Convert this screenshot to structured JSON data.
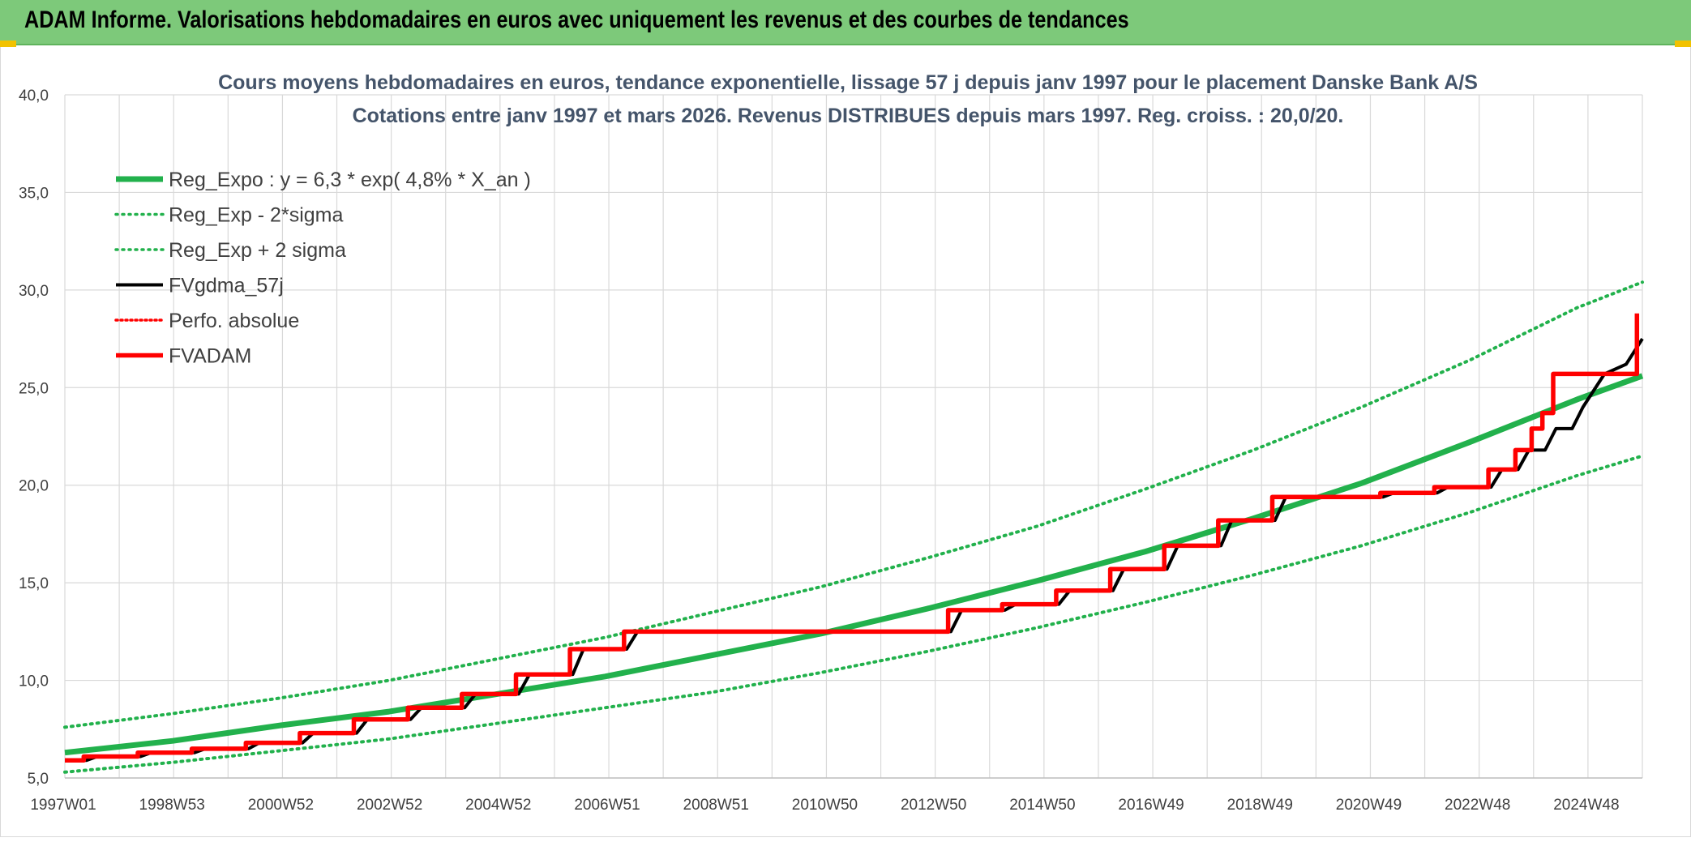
{
  "header": {
    "title": "ADAM Informe. Valorisations hebdomadaires en euros avec uniquement les revenus et des courbes de tendances"
  },
  "colors": {
    "header_bg": "#7dc97a",
    "regression": "#22b14c",
    "gdma": "#000000",
    "adam": "#ff0000",
    "grid": "#d9d9d9"
  },
  "chart_data": {
    "type": "line",
    "title": "Cours moyens hebdomadaires en euros, tendance exponentielle, lissage 57 j depuis janv 1997 pour le placement Danske Bank A/S",
    "subtitle": "Cotations entre janv 1997 et mars 2026. Revenus DISTRIBUES depuis mars 1997. Reg. croiss. : 20,0/20.",
    "xlabel": "",
    "ylabel": "",
    "ylim": [
      5.0,
      40.0
    ],
    "y_ticks": [
      "5,0",
      "10,0",
      "15,0",
      "20,0",
      "25,0",
      "30,0",
      "35,0",
      "40,0"
    ],
    "x_range_years": [
      1997.0,
      2026.2
    ],
    "x_tick_labels": [
      "1997W01",
      "1998W53",
      "2000W52",
      "2002W52",
      "2004W52",
      "2006W51",
      "2008W51",
      "2010W50",
      "2012W50",
      "2014W50",
      "2016W49",
      "2018W49",
      "2020W49",
      "2022W48",
      "2024W48"
    ],
    "grid": true,
    "legend_position": "top-left",
    "legend": [
      "Reg_Expo : y = 6,3 * exp( 4,8% *  X_an )",
      "Reg_Exp - 2*sigma",
      "Reg_Exp + 2 sigma",
      "FVgdma_57j",
      "Perfo. absolue",
      "FVADAM"
    ],
    "series": [
      {
        "name": "Reg_Expo : y = 6,3 * exp( 4,8% *  X_an )",
        "style": "solid",
        "x": [
          1997,
          1999,
          2001,
          2003,
          2005,
          2007,
          2009,
          2011,
          2013,
          2015,
          2017,
          2019,
          2021,
          2023,
          2025,
          2026.2
        ],
        "y": [
          6.3,
          6.9,
          7.7,
          8.4,
          9.3,
          10.2,
          11.3,
          12.4,
          13.7,
          15.1,
          16.6,
          18.3,
          20.1,
          22.2,
          24.4,
          25.6
        ]
      },
      {
        "name": "Reg_Exp - 2*sigma",
        "style": "dotted",
        "x": [
          1997,
          1999,
          2001,
          2003,
          2005,
          2007,
          2009,
          2011,
          2013,
          2015,
          2017,
          2019,
          2021,
          2023,
          2025,
          2026.2
        ],
        "y": [
          5.3,
          5.8,
          6.4,
          7.0,
          7.8,
          8.6,
          9.4,
          10.4,
          11.5,
          12.7,
          14.0,
          15.4,
          16.9,
          18.6,
          20.5,
          21.5
        ]
      },
      {
        "name": "Reg_Exp + 2 sigma",
        "style": "dotted",
        "x": [
          1997,
          1999,
          2001,
          2003,
          2005,
          2007,
          2009,
          2011,
          2013,
          2015,
          2017,
          2019,
          2021,
          2023,
          2025,
          2026.2
        ],
        "y": [
          7.6,
          8.3,
          9.1,
          10.0,
          11.1,
          12.2,
          13.5,
          14.8,
          16.3,
          17.9,
          19.8,
          21.8,
          24.0,
          26.4,
          29.1,
          30.4
        ]
      },
      {
        "name": "FVgdma_57j",
        "style": "solid",
        "x": [
          1997.0,
          1997.4,
          1997.6,
          1998.4,
          1998.6,
          1999.4,
          1999.6,
          2000.4,
          2000.6,
          2001.4,
          2001.6,
          2002.4,
          2002.6,
          2003.4,
          2003.6,
          2004.4,
          2004.6,
          2005.4,
          2005.6,
          2006.4,
          2006.6,
          2007.4,
          2007.6,
          2013.4,
          2013.6,
          2014.4,
          2014.6,
          2015.4,
          2015.6,
          2016.4,
          2016.6,
          2017.4,
          2017.6,
          2018.4,
          2018.6,
          2019.4,
          2019.6,
          2021.4,
          2021.6,
          2022.4,
          2022.6,
          2023.4,
          2023.6,
          2023.9,
          2024.1,
          2024.4,
          2024.6,
          2024.9,
          2025.1,
          2025.5,
          2025.9,
          2026.2
        ],
        "y": [
          5.9,
          5.9,
          6.1,
          6.1,
          6.3,
          6.3,
          6.5,
          6.5,
          6.8,
          6.8,
          7.3,
          7.3,
          8.0,
          8.0,
          8.6,
          8.6,
          9.3,
          9.3,
          10.3,
          10.3,
          11.6,
          11.6,
          12.5,
          12.5,
          13.6,
          13.6,
          13.9,
          13.9,
          14.6,
          14.6,
          15.7,
          15.7,
          16.9,
          16.9,
          18.2,
          18.2,
          19.4,
          19.4,
          19.6,
          19.6,
          19.9,
          19.9,
          20.8,
          20.8,
          21.8,
          21.8,
          22.9,
          22.9,
          24.0,
          25.7,
          26.2,
          27.5
        ]
      },
      {
        "name": "Perfo. absolue",
        "style": "dotted",
        "x": [],
        "y": []
      },
      {
        "name": "FVADAM",
        "style": "solid",
        "x": [
          1997.0,
          1997.35,
          1997.35,
          1998.35,
          1998.35,
          1999.35,
          1999.35,
          2000.35,
          2000.35,
          2001.35,
          2001.35,
          2002.35,
          2002.35,
          2003.35,
          2003.35,
          2004.35,
          2004.35,
          2005.35,
          2005.35,
          2006.35,
          2006.35,
          2007.35,
          2007.35,
          2013.35,
          2013.35,
          2014.35,
          2014.35,
          2015.35,
          2015.35,
          2016.35,
          2016.35,
          2017.35,
          2017.35,
          2018.35,
          2018.35,
          2019.35,
          2019.35,
          2021.35,
          2021.35,
          2022.35,
          2022.35,
          2023.35,
          2023.35,
          2023.85,
          2023.85,
          2024.15,
          2024.15,
          2024.35,
          2024.35,
          2024.55,
          2024.55,
          2024.9,
          2024.9,
          2026.1,
          2026.1
        ],
        "y": [
          5.9,
          5.9,
          6.1,
          6.1,
          6.3,
          6.3,
          6.5,
          6.5,
          6.8,
          6.8,
          7.3,
          7.3,
          8.0,
          8.0,
          8.6,
          8.6,
          9.3,
          9.3,
          10.3,
          10.3,
          11.6,
          11.6,
          12.5,
          12.5,
          13.6,
          13.6,
          13.9,
          13.9,
          14.6,
          14.6,
          15.7,
          15.7,
          16.9,
          16.9,
          18.2,
          18.2,
          19.4,
          19.4,
          19.6,
          19.6,
          19.9,
          19.9,
          20.8,
          20.8,
          21.8,
          21.8,
          22.9,
          22.9,
          23.7,
          23.7,
          25.7,
          25.7,
          25.7,
          25.7,
          28.8
        ]
      }
    ]
  }
}
